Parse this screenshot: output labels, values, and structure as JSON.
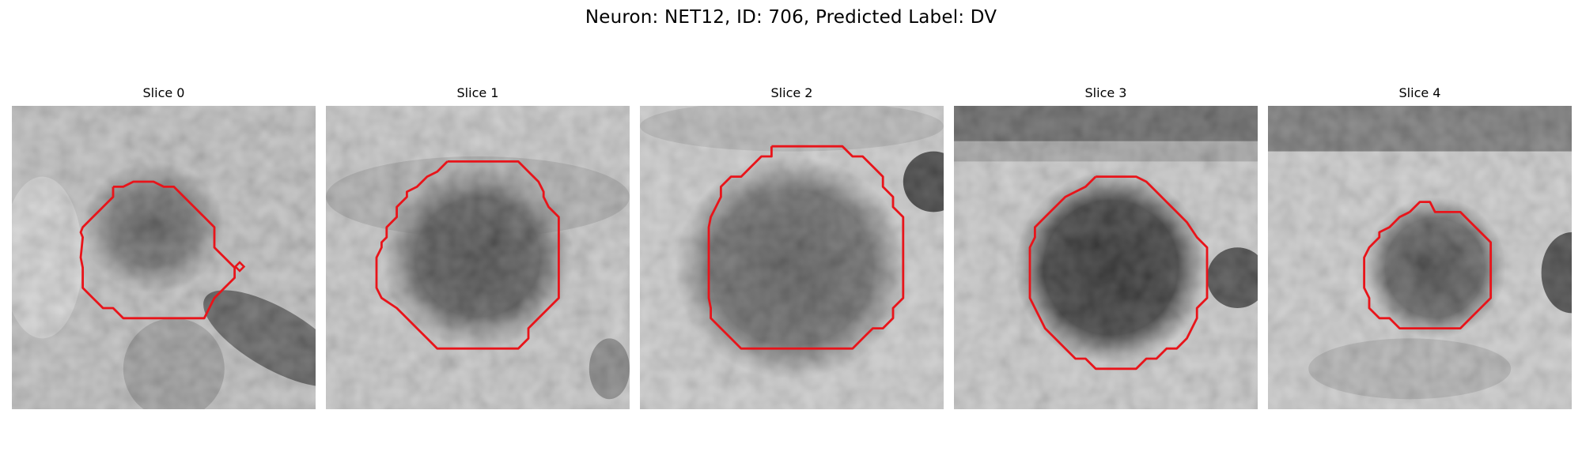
{
  "figure": {
    "title": "Neuron: NET12, ID: 706, Predicted Label: DV"
  },
  "colors": {
    "contour": "#e8141a",
    "background": "#ffffff"
  },
  "panels": [
    {
      "title": "Slice 0"
    },
    {
      "title": "Slice 1"
    },
    {
      "title": "Slice 2"
    },
    {
      "title": "Slice 3"
    },
    {
      "title": "Slice 4"
    }
  ]
}
